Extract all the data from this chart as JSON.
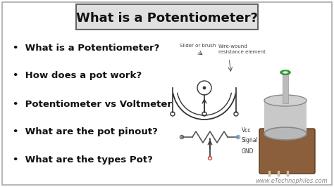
{
  "bg_color": "#ffffff",
  "border_color": "#aaaaaa",
  "title": "What is a Potentiometer?",
  "title_box_color": "#e0e0e0",
  "title_border_color": "#666666",
  "bullet_points": [
    "What is a Potentiometer?",
    "How does a pot work?",
    "Potentiometer vs Voltmeter",
    "What are the pot pinout?",
    "What are the types Pot?"
  ],
  "bullet_color": "#111111",
  "title_fontsize": 13,
  "bullet_fontsize": 9.5,
  "watermark": "www.eTechnophiles.com",
  "watermark_color": "#888888",
  "watermark_fontsize": 6,
  "diagram_label1": "Slider or brush",
  "diagram_label2": "Wire-wound\nresistance element",
  "label_vcc": "Vcc",
  "label_signal": "Signal",
  "label_gnd": "GND"
}
